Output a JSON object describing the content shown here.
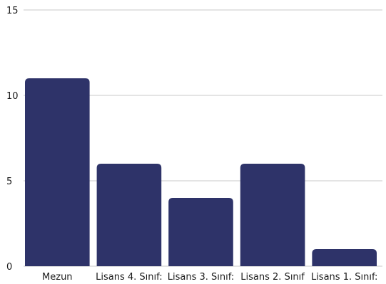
{
  "chart_data": {
    "type": "bar",
    "categories": [
      "Mezun",
      "Lisans 4. Sınıf:",
      "Lisans 3. Sınıf:",
      "Lisans 2. Sınıf",
      "Lisans 1. Sınıf:"
    ],
    "values": [
      11,
      6,
      4,
      6,
      1
    ],
    "ylim": [
      0,
      15
    ],
    "yticks": [
      0,
      5,
      10,
      15
    ],
    "grid": true,
    "bar_color": "#2e3369"
  }
}
